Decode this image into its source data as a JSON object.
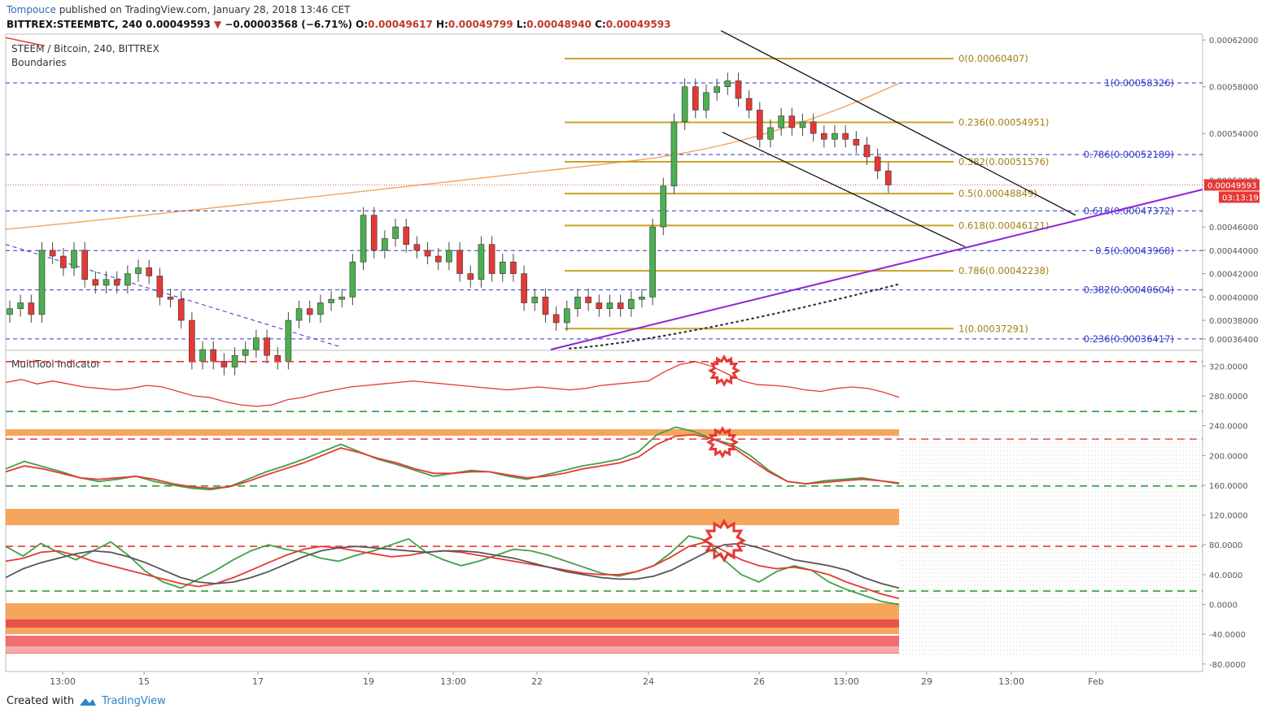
{
  "header": {
    "user": "Tompouce",
    "published_text": "published on TradingView.com, January 28, 2018 13:46 CET",
    "symbol": "BITTREX:STEEMBTC, 240",
    "last": "0.00049593",
    "change": "−0.00003568 (−6.71%)",
    "o_label": "O:",
    "o": "0.00049617",
    "h_label": "H:",
    "h": "0.00049799",
    "l_label": "L:",
    "l": "0.00048940",
    "c_label": "C:",
    "c": "0.00049593"
  },
  "legend": {
    "series": "STEEM / Bitcoin, 240, BITTREX",
    "boundaries": "Boundaries",
    "indicator": "MultiTool Indicator"
  },
  "footer": {
    "created_with": "Created with",
    "brand": "TradingView"
  },
  "price_tag": {
    "value": "0.00049593",
    "timer": "03:13:19"
  },
  "colors": {
    "up": "#4caf50",
    "down": "#e53935",
    "fib_gold": "#c9a227",
    "fib_blue": "#2f36c9",
    "trend_purple": "#8e24d6",
    "ma_orange": "#f5a25d",
    "grid": "#e6e6e6"
  },
  "chart_data": [
    {
      "type": "candlestick",
      "title": "STEEM / Bitcoin, 240, BITTREX",
      "ylim": [
        0.000355,
        0.000625
      ],
      "y_ticks": [
        "0.00062000",
        "0.00058000",
        "0.00054000",
        "0.00050000",
        "0.00046000",
        "0.00044000",
        "0.00042000",
        "0.00040000",
        "0.00038000",
        "0.00036400"
      ],
      "y_tick_values": [
        0.00062,
        0.00058,
        0.00054,
        0.0005,
        0.00046,
        0.00044,
        0.00042,
        0.0004,
        0.00038,
        0.000364
      ],
      "x_ticks": [
        "13:00",
        "15",
        "17",
        "19",
        "13:00",
        "22",
        "24",
        "26",
        "13:00",
        "29",
        "13:00",
        "Feb"
      ],
      "candles_close": [
        0.00039,
        0.000395,
        0.000385,
        0.00044,
        0.000435,
        0.000425,
        0.00044,
        0.000415,
        0.00041,
        0.000415,
        0.00041,
        0.00042,
        0.000425,
        0.000418,
        0.0004,
        0.000398,
        0.00038,
        0.000345,
        0.000355,
        0.000345,
        0.00034,
        0.00035,
        0.000355,
        0.000365,
        0.00035,
        0.000345,
        0.00038,
        0.00039,
        0.000385,
        0.000395,
        0.000398,
        0.0004,
        0.00043,
        0.00047,
        0.00044,
        0.00045,
        0.00046,
        0.000445,
        0.00044,
        0.000435,
        0.00043,
        0.00044,
        0.00042,
        0.000415,
        0.000445,
        0.00042,
        0.00043,
        0.00042,
        0.000395,
        0.0004,
        0.000385,
        0.000378,
        0.00039,
        0.0004,
        0.000395,
        0.00039,
        0.000395,
        0.00039,
        0.000398,
        0.0004,
        0.00046,
        0.000495,
        0.00055,
        0.00058,
        0.00056,
        0.000575,
        0.00058,
        0.000585,
        0.00057,
        0.00056,
        0.000535,
        0.000545,
        0.000555,
        0.000545,
        0.00055,
        0.00054,
        0.000535,
        0.00054,
        0.000535,
        0.00053,
        0.00052,
        0.000508,
        0.000496
      ],
      "fib_gold": [
        {
          "label": "0(0.00060407)",
          "value": 0.00060407
        },
        {
          "label": "0.236(0.00054951)",
          "value": 0.00054951
        },
        {
          "label": "0.382(0.00051576)",
          "value": 0.00051576
        },
        {
          "label": "0.5(0.00048849)",
          "value": 0.00048849
        },
        {
          "label": "0.618(0.00046121)",
          "value": 0.00046121
        },
        {
          "label": "0.786(0.00042238)",
          "value": 0.00042238
        },
        {
          "label": "1(0.00037291)",
          "value": 0.00037291
        }
      ],
      "fib_blue": [
        {
          "label": "1(0.00058326)",
          "value": 0.00058326
        },
        {
          "label": "0.786(0.00052189)",
          "value": 0.00052189
        },
        {
          "label": "0.618(0.00047372)",
          "value": 0.00047372
        },
        {
          "label": "0.5(0.00043968)",
          "value": 0.00043968
        },
        {
          "label": "0.382(0.00040604)",
          "value": 0.00040604
        },
        {
          "label": "0.236(0.00036417)",
          "value": 0.00036417
        }
      ]
    },
    {
      "type": "line",
      "title": "MultiTool Indicator",
      "ylim": [
        -90,
        340
      ],
      "y_ticks": [
        "320.0000",
        "280.0000",
        "240.0000",
        "200.0000",
        "160.0000",
        "120.0000",
        "80.0000",
        "40.0000",
        "0.0000",
        "-40.0000",
        "-80.0000"
      ],
      "y_tick_values": [
        320,
        280,
        240,
        200,
        160,
        120,
        80,
        40,
        0,
        -40,
        -80
      ],
      "dashed_levels": [
        {
          "value": 326,
          "color": "red"
        },
        {
          "value": 259,
          "color": "green"
        },
        {
          "value": 222,
          "color": "red"
        },
        {
          "value": 159,
          "color": "green"
        },
        {
          "value": 78,
          "color": "red"
        },
        {
          "value": 18,
          "color": "green"
        }
      ],
      "series": [
        {
          "name": "",
          "color": "#e53935",
          "values": [
            298,
            302,
            296,
            300,
            296,
            292,
            290,
            288,
            290,
            294,
            292,
            286,
            280,
            278,
            272,
            268,
            266,
            268,
            275,
            278,
            284,
            288,
            292,
            294,
            296,
            298,
            300,
            298,
            296,
            294,
            292,
            290,
            288,
            290,
            292,
            290,
            288,
            290,
            294,
            296,
            298,
            300,
            312,
            322,
            326,
            320,
            310,
            300,
            295,
            294,
            292,
            288,
            286,
            290,
            292,
            290,
            285,
            278
          ]
        },
        {
          "name": "",
          "color": "#43a047",
          "values": [
            182,
            192,
            185,
            178,
            170,
            165,
            168,
            172,
            165,
            160,
            156,
            154,
            158,
            168,
            178,
            186,
            195,
            205,
            215,
            205,
            195,
            188,
            180,
            172,
            176,
            180,
            178,
            172,
            168,
            174,
            180,
            186,
            190,
            195,
            205,
            228,
            238,
            232,
            222,
            215,
            200,
            180,
            165,
            162,
            166,
            168,
            170,
            166,
            162
          ]
        },
        {
          "name": "",
          "color": "#e53935",
          "values": [
            178,
            186,
            182,
            176,
            170,
            168,
            170,
            172,
            168,
            162,
            158,
            156,
            158,
            165,
            174,
            182,
            190,
            200,
            210,
            204,
            196,
            190,
            182,
            176,
            176,
            178,
            178,
            174,
            170,
            172,
            176,
            182,
            186,
            190,
            198,
            215,
            226,
            228,
            222,
            212,
            195,
            178,
            165,
            162,
            164,
            166,
            168,
            166,
            163
          ]
        },
        {
          "name": "",
          "color": "#43a047",
          "values": [
            78,
            65,
            82,
            70,
            60,
            72,
            84,
            66,
            44,
            30,
            22,
            34,
            46,
            60,
            72,
            80,
            74,
            70,
            62,
            58,
            66,
            72,
            80,
            88,
            70,
            60,
            52,
            58,
            66,
            74,
            72,
            66,
            58,
            50,
            42,
            38,
            44,
            52,
            70,
            92,
            86,
            60,
            40,
            30,
            44,
            52,
            46,
            30,
            20,
            12,
            4,
            0
          ]
        },
        {
          "name": "",
          "color": "#e53935",
          "values": [
            58,
            62,
            70,
            72,
            66,
            58,
            52,
            46,
            40,
            34,
            28,
            24,
            28,
            36,
            46,
            56,
            66,
            74,
            78,
            76,
            72,
            68,
            64,
            66,
            70,
            72,
            70,
            66,
            62,
            58,
            54,
            50,
            46,
            42,
            40,
            40,
            44,
            52,
            64,
            78,
            84,
            72,
            60,
            52,
            48,
            50,
            46,
            40,
            30,
            22,
            14,
            8
          ]
        },
        {
          "name": "",
          "color": "#555555",
          "values": [
            36,
            48,
            56,
            62,
            68,
            72,
            70,
            64,
            56,
            46,
            36,
            30,
            28,
            30,
            36,
            44,
            54,
            64,
            72,
            76,
            78,
            76,
            74,
            72,
            70,
            72,
            72,
            70,
            66,
            62,
            56,
            50,
            44,
            40,
            36,
            34,
            34,
            38,
            46,
            58,
            70,
            80,
            82,
            76,
            68,
            60,
            56,
            52,
            46,
            36,
            28,
            22
          ]
        }
      ]
    }
  ]
}
